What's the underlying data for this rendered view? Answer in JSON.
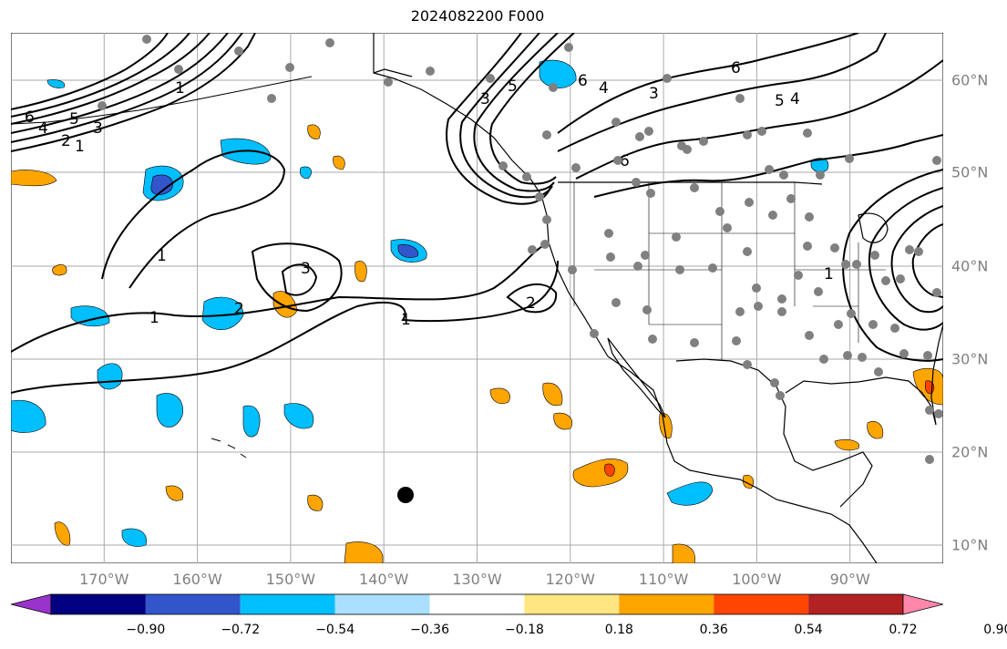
{
  "title": "2024082200 F000",
  "map": {
    "lon_labels": [
      "170°W",
      "160°W",
      "150°W",
      "140°W",
      "130°W",
      "120°W",
      "110°W",
      "100°W",
      "90°W"
    ],
    "lat_labels": [
      "60°N",
      "50°N",
      "40°N",
      "30°N",
      "20°N",
      "10°N"
    ],
    "lon_values": [
      -170,
      -160,
      -150,
      -140,
      -130,
      -120,
      -110,
      -100,
      -90
    ],
    "lat_values": [
      60,
      50,
      40,
      30,
      20,
      10
    ],
    "extent": {
      "lon_min": -180,
      "lon_max": -80,
      "lat_min": 8,
      "lat_max": 65
    },
    "grid": true,
    "contour_labels_visible": [
      "1",
      "2",
      "3",
      "4",
      "5",
      "6"
    ],
    "station_marker_color": "#808080",
    "storm_marker_color": "#000000"
  },
  "colorbar": {
    "ticks": [
      "−0.90",
      "−0.72",
      "−0.54",
      "−0.36",
      "−0.18",
      "0.18",
      "0.36",
      "0.54",
      "0.72",
      "0.90"
    ],
    "colors": [
      "#9933cc",
      "#000080",
      "#3355cc",
      "#00bfff",
      "#aadfff",
      "#ffffff",
      "#ffe680",
      "#ffa500",
      "#ff4500",
      "#b22222",
      "#ff88aa"
    ]
  }
}
